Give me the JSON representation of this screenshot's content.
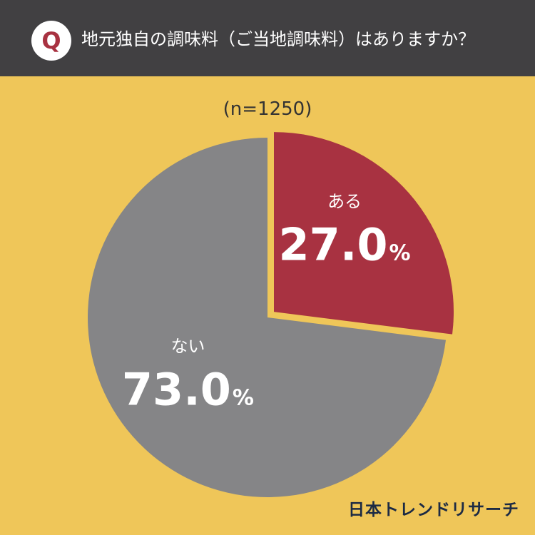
{
  "header": {
    "badge": "Q",
    "question": "地元独自の調味料（ご当地調味料）はありますか？"
  },
  "sample_size": "(n=1250)",
  "brand": "日本トレンドリサーチ",
  "colors": {
    "background": "#efc659",
    "header": "#414042",
    "slice_yes": "#a83241",
    "slice_no": "#858587"
  },
  "chart_data": {
    "type": "pie",
    "title": "地元独自の調味料（ご当地調味料）はありますか？",
    "slices": [
      {
        "label": "ある",
        "value": 27.0,
        "value_text": "27.0",
        "unit": "%",
        "color": "#a83241",
        "exploded": true
      },
      {
        "label": "ない",
        "value": 73.0,
        "value_text": "73.0",
        "unit": "%",
        "color": "#858587",
        "exploded": false
      }
    ]
  }
}
